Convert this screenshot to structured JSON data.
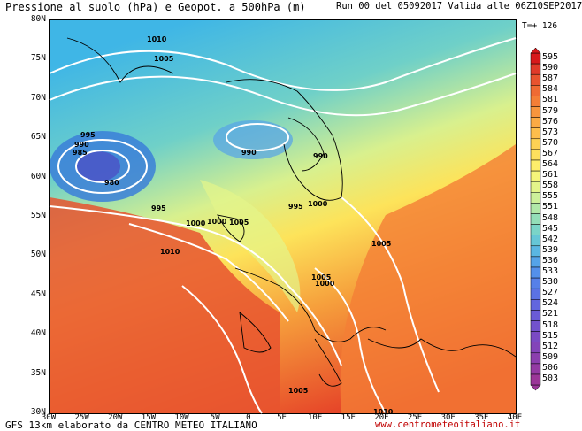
{
  "header": {
    "title": "Pressione al suolo (hPa) e Geopot. a 500hPa (m)",
    "run_info": "Run 00 del 05092017  Valida alle 06Z10SEP2017",
    "time_step": "T=+ 126"
  },
  "map": {
    "lat_labels": [
      "80N",
      "75N",
      "70N",
      "65N",
      "60N",
      "55N",
      "50N",
      "45N",
      "40N",
      "35N",
      "30N"
    ],
    "lon_labels": [
      "30W",
      "25W",
      "20W",
      "15W",
      "10W",
      "5W",
      "0",
      "5E",
      "10E",
      "15E",
      "20E",
      "25E",
      "30E",
      "35E",
      "40E"
    ],
    "isobar_labels": [
      "1010",
      "1005",
      "995",
      "990",
      "985",
      "980",
      "990",
      "990",
      "995",
      "1000",
      "1005",
      "1000",
      "995",
      "1000",
      "1005",
      "1010",
      "1005",
      "1000",
      "1005",
      "1010"
    ]
  },
  "legend": {
    "values": [
      "595",
      "590",
      "587",
      "584",
      "581",
      "579",
      "576",
      "573",
      "570",
      "567",
      "564",
      "561",
      "558",
      "555",
      "551",
      "548",
      "545",
      "542",
      "539",
      "536",
      "533",
      "530",
      "527",
      "524",
      "521",
      "518",
      "515",
      "512",
      "509",
      "506",
      "503"
    ],
    "colors": [
      "#d7191c",
      "#e03a2a",
      "#e8532f",
      "#ef6a33",
      "#f47e36",
      "#f8953d",
      "#fbaa44",
      "#fdbe4c",
      "#fed254",
      "#fee05e",
      "#fdee6b",
      "#f5f57a",
      "#e4f58a",
      "#cdf09a",
      "#b1e8a8",
      "#93deb8",
      "#7ad4c8",
      "#66c6d6",
      "#5ab6e2",
      "#55a3e8",
      "#5490ea",
      "#5680e8",
      "#5b72e4",
      "#6266de",
      "#6a5bd6",
      "#7252cd",
      "#7a4ac3",
      "#8344b9",
      "#8b3fae",
      "#933aa3",
      "#9b3698"
    ]
  },
  "footer": {
    "left": "GFS 13km elaborato da CENTRO METEO ITALIANO",
    "right": "www.centrometeoitaliano.it"
  }
}
